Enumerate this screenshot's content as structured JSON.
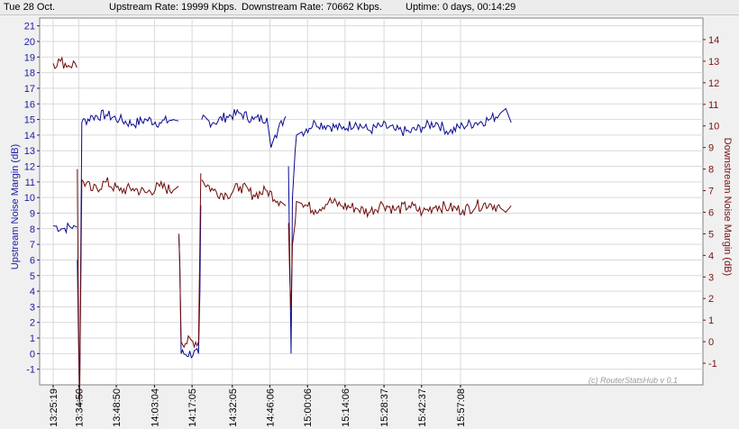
{
  "header": {
    "date": "Tue 28 Oct.",
    "upstream_rate": "Upstream Rate: 19999 Kbps.",
    "downstream_rate": "Downstream Rate: 70662 Kbps.",
    "uptime": "Uptime: 0 days, 00:14:29"
  },
  "watermark": "(c) RouterStatsHub v 0.1",
  "colors": {
    "upstream": "#0b0b8f",
    "downstream": "#6e0a0a",
    "grid": "#d9d9d9",
    "plot_bg": "#ffffff"
  },
  "chart_data": {
    "type": "line",
    "xlabel": "",
    "ylabel_left": "Upstream Noise Margin (dB)",
    "ylabel_right": "Downstream Noise Margin (dB)",
    "ylim_left": [
      -2,
      21.5
    ],
    "ylim_right": [
      -2,
      15
    ],
    "yticks_left": [
      -1,
      0,
      1,
      2,
      3,
      4,
      5,
      6,
      7,
      8,
      9,
      10,
      11,
      12,
      13,
      14,
      15,
      16,
      17,
      18,
      19,
      20,
      21
    ],
    "yticks_right": [
      -1,
      0,
      1,
      2,
      3,
      4,
      5,
      6,
      7,
      8,
      9,
      10,
      11,
      12,
      13,
      14
    ],
    "x_tick_labels": [
      "13:25:19",
      "13:34:50",
      "13:48:50",
      "14:03:04",
      "14:17:05",
      "14:32:05",
      "14:46:06",
      "15:00:06",
      "15:14:06",
      "15:28:37",
      "15:42:37",
      "15:57:08"
    ],
    "grid": true,
    "series": [
      {
        "name": "Upstream Noise Margin (dB)",
        "axis": "left",
        "segments": [
          {
            "t": [
              "13:25:19",
              "13:29:00",
              "13:33:00",
              "13:34:10"
            ],
            "v": [
              8.2,
              8.0,
              8.2,
              8.1
            ]
          },
          {
            "t": [
              "13:34:20",
              "13:34:40",
              "13:35:10",
              "13:36:00",
              "13:40:00",
              "13:45:00",
              "13:50:00",
              "13:55:00",
              "14:00:00",
              "14:05:00",
              "14:10:00",
              "14:12:00"
            ],
            "v": [
              6.0,
              2.0,
              -3.0,
              14.8,
              15.2,
              15.3,
              15.0,
              14.7,
              15.0,
              14.8,
              15.0,
              14.9
            ]
          },
          {
            "t": [
              "14:12:10",
              "14:12:30",
              "14:13:00",
              "14:19:30",
              "14:20:00",
              "14:20:20"
            ],
            "v": [
              7.5,
              5.8,
              0.0,
              0.0,
              4.0,
              9.5
            ]
          },
          {
            "t": [
              "14:20:40",
              "14:25:00",
              "14:30:00",
              "14:35:00",
              "14:40:00",
              "14:45:00",
              "14:46:30",
              "14:48:00",
              "14:52:00"
            ],
            "v": [
              15.0,
              14.8,
              15.2,
              15.4,
              15.0,
              15.1,
              13.2,
              14.0,
              15.2
            ]
          },
          {
            "t": [
              "14:53:00",
              "14:53:30",
              "14:54:00",
              "14:54:30",
              "14:55:30",
              "14:56:00",
              "14:58:00",
              "15:03:00",
              "15:08:00",
              "15:13:00",
              "15:18:00",
              "15:23:00",
              "15:28:00",
              "15:33:00",
              "15:38:00",
              "15:43:00",
              "15:48:00",
              "15:53:00",
              "15:58:00",
              "16:03:00",
              "16:08:00",
              "16:12:00",
              "16:14:00",
              "16:16:00"
            ],
            "v": [
              12.0,
              6.0,
              0.0,
              10.0,
              13.0,
              14.0,
              14.2,
              14.8,
              14.6,
              14.4,
              14.8,
              14.3,
              14.6,
              14.3,
              14.2,
              14.5,
              14.8,
              14.2,
              14.6,
              14.8,
              15.0,
              15.4,
              15.7,
              14.8
            ]
          }
        ]
      },
      {
        "name": "Downstream Noise Margin (dB)",
        "axis": "right",
        "segments": [
          {
            "t": [
              "13:25:19",
              "13:28:00",
              "13:31:00",
              "13:33:30",
              "13:34:10"
            ],
            "v": [
              12.9,
              13.0,
              12.8,
              12.9,
              12.7
            ]
          },
          {
            "t": [
              "13:34:20",
              "13:34:40",
              "13:35:10",
              "13:36:00",
              "13:40:00",
              "13:45:00",
              "13:50:00",
              "13:55:00",
              "14:00:00",
              "14:05:00",
              "14:10:00",
              "14:12:00"
            ],
            "v": [
              8.0,
              2.0,
              -3.0,
              7.5,
              7.0,
              7.4,
              7.0,
              7.1,
              6.9,
              7.2,
              7.0,
              7.2
            ]
          },
          {
            "t": [
              "14:12:10",
              "14:12:30",
              "14:13:00",
              "14:19:30",
              "14:20:00",
              "14:20:20"
            ],
            "v": [
              5.0,
              3.5,
              0.0,
              0.0,
              4.5,
              7.8
            ]
          },
          {
            "t": [
              "14:20:40",
              "14:25:00",
              "14:30:00",
              "14:35:00",
              "14:40:00",
              "14:45:00",
              "14:50:00",
              "14:52:00"
            ],
            "v": [
              7.5,
              7.0,
              6.8,
              7.2,
              6.8,
              7.0,
              6.5,
              6.3
            ]
          },
          {
            "t": [
              "14:53:00",
              "14:53:30",
              "14:54:00",
              "14:54:30",
              "14:55:30",
              "14:56:00",
              "14:58:00",
              "15:03:00",
              "15:08:00",
              "15:13:00",
              "15:18:00",
              "15:23:00",
              "15:28:00",
              "15:33:00",
              "15:38:00",
              "15:43:00",
              "15:48:00",
              "15:53:00",
              "15:58:00",
              "16:03:00",
              "16:08:00",
              "16:12:00",
              "16:14:00",
              "16:16:00"
            ],
            "v": [
              5.5,
              3.0,
              1.5,
              4.5,
              5.5,
              6.5,
              6.4,
              6.1,
              6.5,
              6.3,
              6.2,
              6.0,
              6.4,
              6.1,
              6.3,
              6.0,
              6.3,
              6.2,
              6.1,
              6.3,
              6.4,
              6.2,
              6.0,
              6.3
            ]
          }
        ]
      }
    ]
  }
}
